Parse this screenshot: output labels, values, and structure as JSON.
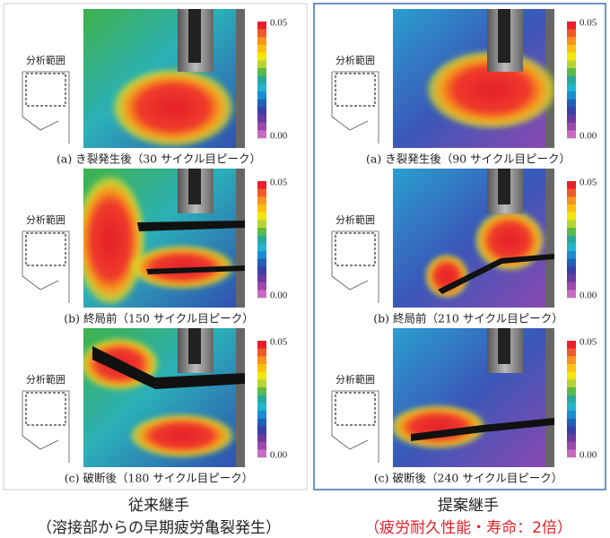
{
  "panels": [
    {
      "title": "従来継手",
      "subtitle": "（溶接部からの早期疲労亀裂発生）",
      "rows": [
        {
          "region_label": "分析範囲",
          "scale_max": "0.05",
          "scale_min": "0.00",
          "caption": "(a)  き裂発生後（30 サイクル目ピーク）"
        },
        {
          "region_label": "分析範囲",
          "scale_max": "0.05",
          "scale_min": "0.00",
          "caption": "(b)  終局前（150 サイクル目ピーク）"
        },
        {
          "region_label": "分析範囲",
          "scale_max": "0.05",
          "scale_min": "0.00",
          "caption": "(c)  破断後（180 サイクル目ピーク）"
        }
      ]
    },
    {
      "title": "提案継手",
      "subtitle": "（疲労耐久性能・寿命：2倍）",
      "rows": [
        {
          "region_label": "分析範囲",
          "scale_max": "0.05",
          "scale_min": "0.00",
          "caption": "(a)  き裂発生後（90 サイクル目ピーク）"
        },
        {
          "region_label": "分析範囲",
          "scale_max": "0.05",
          "scale_min": "0.00",
          "caption": "(b)  終局前（210 サイクル目ピーク）"
        },
        {
          "region_label": "分析範囲",
          "scale_max": "0.05",
          "scale_min": "0.00",
          "caption": "(c)  破断後（240 サイクル目ピーク）"
        }
      ]
    }
  ]
}
